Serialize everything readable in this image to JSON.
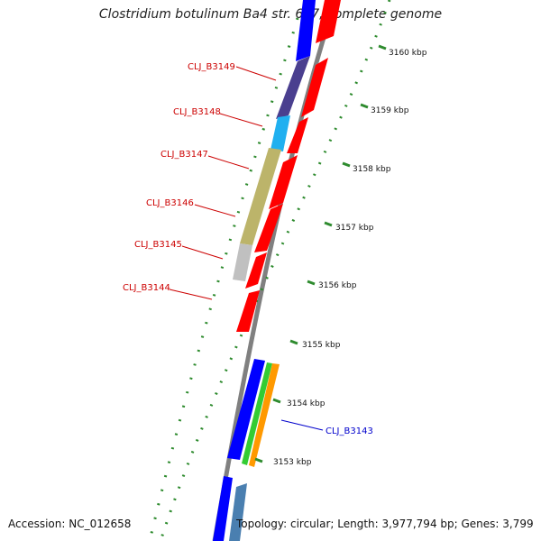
{
  "title": "Clostridium botulinum Ba4 str. 657, complete genome",
  "accession": "Accession: NC_012658",
  "topology": "Topology: circular; Length: 3,977,794 bp; Genes: 3,799",
  "ticks": [
    {
      "label": "3160 kbp"
    },
    {
      "label": "3159 kbp"
    },
    {
      "label": "3158 kbp"
    },
    {
      "label": "3157 kbp"
    },
    {
      "label": "3156 kbp"
    },
    {
      "label": "3155 kbp"
    },
    {
      "label": "3154 kbp"
    },
    {
      "label": "3153 kbp"
    }
  ],
  "gene_labels": [
    {
      "name": "CLJ_B3149",
      "color": "#cc0000"
    },
    {
      "name": "CLJ_B3148",
      "color": "#cc0000"
    },
    {
      "name": "CLJ_B3147",
      "color": "#cc0000"
    },
    {
      "name": "CLJ_B3146",
      "color": "#cc0000"
    },
    {
      "name": "CLJ_B3145",
      "color": "#cc0000"
    },
    {
      "name": "CLJ_B3144",
      "color": "#cc0000"
    },
    {
      "name": "CLJ_B3143",
      "color": "#0000cc"
    }
  ],
  "colors": {
    "cds": "#ff0000",
    "backbone": "#808080",
    "tick": "#2e8b2e",
    "cog_blue": "#0000ff",
    "cog_purple": "#4a3f8f",
    "cog_cyan": "#20b0f0",
    "cog_khaki": "#bcb46a",
    "cog_gray": "#c0c0c0",
    "cog_green": "#33cc33",
    "cog_orange": "#ff9900",
    "cog_steel": "#4a7fb0"
  }
}
